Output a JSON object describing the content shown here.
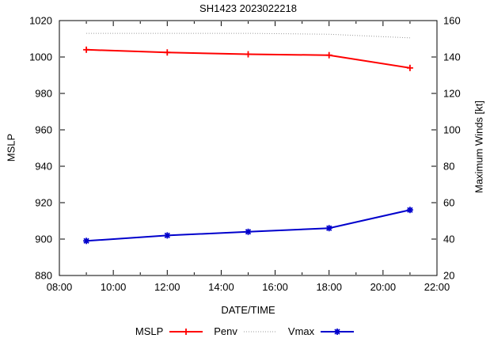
{
  "title": "SH1423 2023022218",
  "chart_data": {
    "type": "line",
    "title": "SH1423 2023022218",
    "xlabel": "DATE/TIME",
    "ylabel_left": "MSLP",
    "ylabel_right": "Maximum Winds [kt]",
    "x_ticks": [
      "08:00",
      "10:00",
      "12:00",
      "14:00",
      "16:00",
      "18:00",
      "20:00",
      "22:00"
    ],
    "x_range_hours": [
      8,
      22
    ],
    "x_major_step_hours": 2,
    "x_minor_step_hours": 1,
    "y_left_range": [
      880,
      1020
    ],
    "y_left_ticks": [
      1020,
      1000,
      980,
      960,
      940,
      920,
      900,
      880
    ],
    "y_right_range": [
      20,
      160
    ],
    "y_right_ticks": [
      160,
      140,
      120,
      100,
      80,
      60,
      40,
      20
    ],
    "grid": false,
    "legend_position": "bottom-center",
    "series": [
      {
        "name": "MSLP",
        "axis": "left",
        "color": "#ff0000",
        "style": "solid",
        "marker": "plus",
        "x": [
          9,
          12,
          15,
          18,
          21
        ],
        "values": [
          1004,
          1002.5,
          1001.5,
          1001,
          994
        ]
      },
      {
        "name": "Penv",
        "axis": "left",
        "color": "#9a9a9a",
        "style": "dotted",
        "marker": "none",
        "x": [
          9,
          12,
          15,
          18,
          21
        ],
        "values": [
          1013,
          1013,
          1013,
          1012.5,
          1010.5
        ]
      },
      {
        "name": "Vmax",
        "axis": "right",
        "color": "#0000cc",
        "style": "solid",
        "marker": "asterisk",
        "x": [
          9,
          12,
          15,
          18,
          21
        ],
        "values": [
          39,
          42,
          44,
          46,
          56
        ]
      }
    ]
  }
}
